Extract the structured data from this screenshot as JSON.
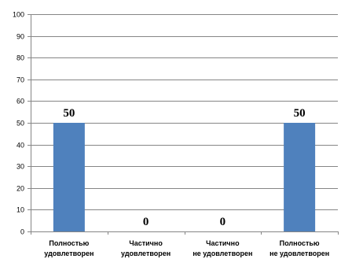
{
  "chart_data": {
    "type": "bar",
    "categories": [
      [
        "Полностью",
        "удовлетворен"
      ],
      [
        "Частично",
        "удовлетворен"
      ],
      [
        "Частично",
        "не удовлетворен"
      ],
      [
        "Полностью",
        "не удовлетворен"
      ]
    ],
    "values": [
      50,
      0,
      0,
      50
    ],
    "data_labels": [
      "50",
      "0",
      "0",
      "50"
    ],
    "ylim": [
      0,
      100
    ],
    "yticks": [
      0,
      10,
      20,
      30,
      40,
      50,
      60,
      70,
      80,
      90,
      100
    ],
    "grid": true,
    "legend": "none",
    "colors": {
      "bar": "#4f81bd",
      "grid": "#868686"
    }
  }
}
